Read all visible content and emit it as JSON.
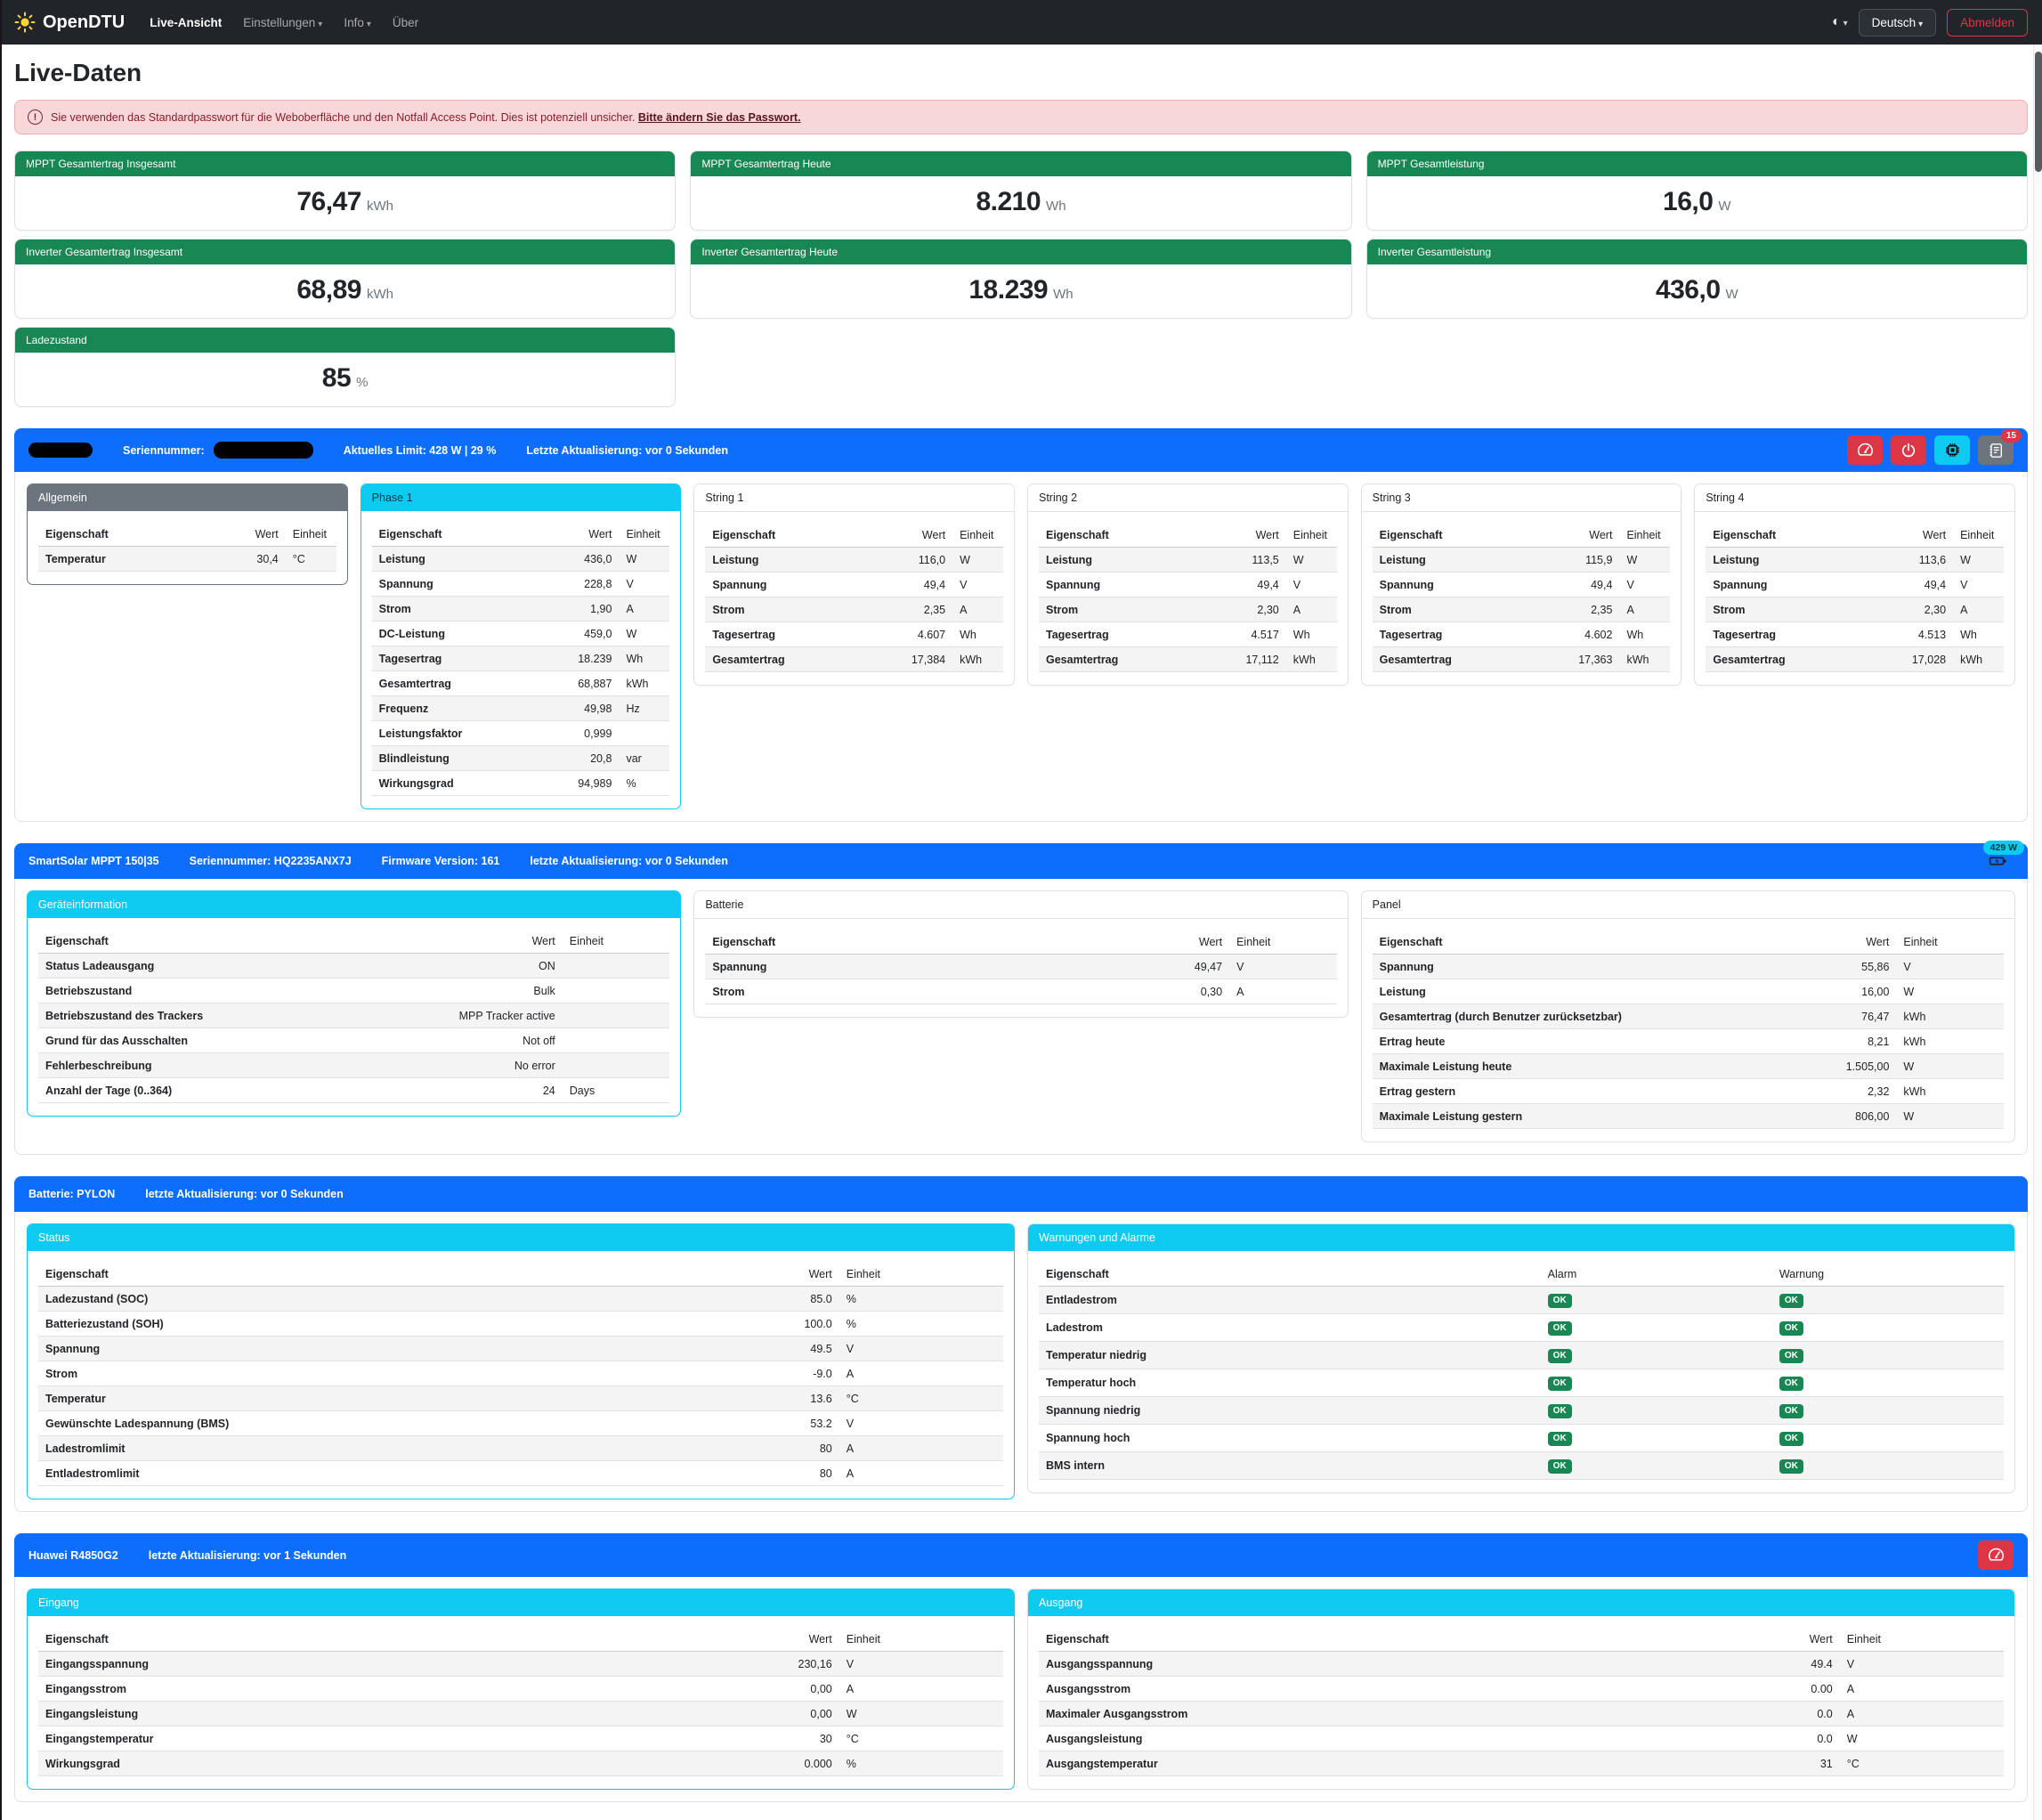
{
  "navbar": {
    "brand": "OpenDTU",
    "links": {
      "live": "Live-Ansicht",
      "settings": "Einstellungen",
      "info": "Info",
      "about": "Über"
    },
    "language": "Deutsch",
    "logout": "Abmelden"
  },
  "page_title": "Live-Daten",
  "alert": {
    "text": "Sie verwenden das Standardpasswort für die Weboberfläche und den Notfall Access Point. Dies ist potenziell unsicher.",
    "link": "Bitte ändern Sie das Passwort."
  },
  "summary": {
    "col1": [
      {
        "title": "MPPT Gesamtertrag Insgesamt",
        "value": "76,47",
        "unit": "kWh"
      },
      {
        "title": "Inverter Gesamtertrag Insgesamt",
        "value": "68,89",
        "unit": "kWh"
      },
      {
        "title": "Ladezustand",
        "value": "85",
        "unit": "%"
      }
    ],
    "col2": [
      {
        "title": "MPPT Gesamtertrag Heute",
        "value": "8.210",
        "unit": "Wh"
      },
      {
        "title": "Inverter Gesamtertrag Heute",
        "value": "18.239",
        "unit": "Wh"
      }
    ],
    "col3": [
      {
        "title": "MPPT Gesamtleistung",
        "value": "16,0",
        "unit": "W"
      },
      {
        "title": "Inverter Gesamtleistung",
        "value": "436,0",
        "unit": "W"
      }
    ]
  },
  "inverter": {
    "header": {
      "serial_label": "Seriennummer:",
      "limit": "Aktuelles Limit: 428 W | 29 %",
      "updated": "Letzte Aktualisierung: vor 0 Sekunden",
      "log_count": "15"
    },
    "tables": [
      {
        "title": "Allgemein",
        "style": "secondary",
        "columns": [
          "Eigenschaft",
          "Wert",
          "Einheit"
        ],
        "rows": [
          [
            "Temperatur",
            "30,4",
            "°C"
          ]
        ]
      },
      {
        "title": "Phase 1",
        "style": "info-dark",
        "columns": [
          "Eigenschaft",
          "Wert",
          "Einheit"
        ],
        "rows": [
          [
            "Leistung",
            "436,0",
            "W"
          ],
          [
            "Spannung",
            "228,8",
            "V"
          ],
          [
            "Strom",
            "1,90",
            "A"
          ],
          [
            "DC-Leistung",
            "459,0",
            "W"
          ],
          [
            "Tagesertrag",
            "18.239",
            "Wh"
          ],
          [
            "Gesamtertrag",
            "68,887",
            "kWh"
          ],
          [
            "Frequenz",
            "49,98",
            "Hz"
          ],
          [
            "Leistungsfaktor",
            "0,999",
            ""
          ],
          [
            "Blindleistung",
            "20,8",
            "var"
          ],
          [
            "Wirkungsgrad",
            "94,989",
            "%"
          ]
        ]
      },
      {
        "title": "String 1",
        "style": "plain",
        "columns": [
          "Eigenschaft",
          "Wert",
          "Einheit"
        ],
        "rows": [
          [
            "Leistung",
            "116,0",
            "W"
          ],
          [
            "Spannung",
            "49,4",
            "V"
          ],
          [
            "Strom",
            "2,35",
            "A"
          ],
          [
            "Tagesertrag",
            "4.607",
            "Wh"
          ],
          [
            "Gesamtertrag",
            "17,384",
            "kWh"
          ]
        ]
      },
      {
        "title": "String 2",
        "style": "plain",
        "columns": [
          "Eigenschaft",
          "Wert",
          "Einheit"
        ],
        "rows": [
          [
            "Leistung",
            "113,5",
            "W"
          ],
          [
            "Spannung",
            "49,4",
            "V"
          ],
          [
            "Strom",
            "2,30",
            "A"
          ],
          [
            "Tagesertrag",
            "4.517",
            "Wh"
          ],
          [
            "Gesamtertrag",
            "17,112",
            "kWh"
          ]
        ]
      },
      {
        "title": "String 3",
        "style": "plain",
        "columns": [
          "Eigenschaft",
          "Wert",
          "Einheit"
        ],
        "rows": [
          [
            "Leistung",
            "115,9",
            "W"
          ],
          [
            "Spannung",
            "49,4",
            "V"
          ],
          [
            "Strom",
            "2,35",
            "A"
          ],
          [
            "Tagesertrag",
            "4.602",
            "Wh"
          ],
          [
            "Gesamtertrag",
            "17,363",
            "kWh"
          ]
        ]
      },
      {
        "title": "String 4",
        "style": "plain",
        "columns": [
          "Eigenschaft",
          "Wert",
          "Einheit"
        ],
        "rows": [
          [
            "Leistung",
            "113,6",
            "W"
          ],
          [
            "Spannung",
            "49,4",
            "V"
          ],
          [
            "Strom",
            "2,30",
            "A"
          ],
          [
            "Tagesertrag",
            "4.513",
            "Wh"
          ],
          [
            "Gesamtertrag",
            "17,028",
            "kWh"
          ]
        ]
      }
    ]
  },
  "victron": {
    "header": {
      "model": "SmartSolar MPPT 150|35",
      "serial": "Seriennummer: HQ2235ANX7J",
      "firmware": "Firmware Version: 161",
      "updated": "letzte Aktualisierung: vor 0 Sekunden",
      "power_badge": "429 W"
    },
    "tables": [
      {
        "title": "Geräteinformation",
        "style": "info-white",
        "columns": [
          "Eigenschaft",
          "Wert",
          "Einheit"
        ],
        "rows": [
          [
            "Status Ladeausgang",
            "ON",
            ""
          ],
          [
            "Betriebszustand",
            "Bulk",
            ""
          ],
          [
            "Betriebszustand des Trackers",
            "MPP Tracker active",
            ""
          ],
          [
            "Grund für das Ausschalten",
            "Not off",
            ""
          ],
          [
            "Fehlerbeschreibung",
            "No error",
            ""
          ],
          [
            "Anzahl der Tage (0..364)",
            "24",
            "Days"
          ]
        ]
      },
      {
        "title": "Batterie",
        "style": "plain",
        "columns": [
          "Eigenschaft",
          "Wert",
          "Einheit"
        ],
        "rows": [
          [
            "Spannung",
            "49,47",
            "V"
          ],
          [
            "Strom",
            "0,30",
            "A"
          ]
        ]
      },
      {
        "title": "Panel",
        "style": "plain",
        "columns": [
          "Eigenschaft",
          "Wert",
          "Einheit"
        ],
        "rows": [
          [
            "Spannung",
            "55,86",
            "V"
          ],
          [
            "Leistung",
            "16,00",
            "W"
          ],
          [
            "Gesamtertrag (durch Benutzer zurücksetzbar)",
            "76,47",
            "kWh"
          ],
          [
            "Ertrag heute",
            "8,21",
            "kWh"
          ],
          [
            "Maximale Leistung heute",
            "1.505,00",
            "W"
          ],
          [
            "Ertrag gestern",
            "2,32",
            "kWh"
          ],
          [
            "Maximale Leistung gestern",
            "806,00",
            "W"
          ]
        ]
      }
    ]
  },
  "pylon": {
    "header": {
      "name": "Batterie: PYLON",
      "updated": "letzte Aktualisierung: vor 0 Sekunden"
    },
    "tables": [
      {
        "title": "Status",
        "style": "info-white",
        "columns": [
          "Eigenschaft",
          "Wert",
          "Einheit"
        ],
        "rows": [
          [
            "Ladezustand (SOC)",
            "85.0",
            "%"
          ],
          [
            "Batteriezustand (SOH)",
            "100.0",
            "%"
          ],
          [
            "Spannung",
            "49.5",
            "V"
          ],
          [
            "Strom",
            "-9.0",
            "A"
          ],
          [
            "Temperatur",
            "13.6",
            "°C"
          ],
          [
            "Gewünschte Ladespannung (BMS)",
            "53.2",
            "V"
          ],
          [
            "Ladestromlimit",
            "80",
            "A"
          ],
          [
            "Entladestromlimit",
            "80",
            "A"
          ]
        ]
      },
      {
        "title": "Warnungen und Alarme",
        "style": "info-plain",
        "badges": true,
        "columns": [
          "Eigenschaft",
          "Alarm",
          "Warnung"
        ],
        "rows": [
          [
            "Entladestrom",
            "OK",
            "OK"
          ],
          [
            "Ladestrom",
            "OK",
            "OK"
          ],
          [
            "Temperatur niedrig",
            "OK",
            "OK"
          ],
          [
            "Temperatur hoch",
            "OK",
            "OK"
          ],
          [
            "Spannung niedrig",
            "OK",
            "OK"
          ],
          [
            "Spannung hoch",
            "OK",
            "OK"
          ],
          [
            "BMS intern",
            "OK",
            "OK"
          ]
        ]
      }
    ]
  },
  "huawei": {
    "header": {
      "name": "Huawei R4850G2",
      "updated": "letzte Aktualisierung: vor 1 Sekunden"
    },
    "tables": [
      {
        "title": "Eingang",
        "style": "info-white",
        "columns": [
          "Eigenschaft",
          "Wert",
          "Einheit"
        ],
        "rows": [
          [
            "Eingangsspannung",
            "230,16",
            "V"
          ],
          [
            "Eingangsstrom",
            "0,00",
            "A"
          ],
          [
            "Eingangsleistung",
            "0,00",
            "W"
          ],
          [
            "Eingangstemperatur",
            "30",
            "°C"
          ],
          [
            "Wirkungsgrad",
            "0.000",
            "%"
          ]
        ]
      },
      {
        "title": "Ausgang",
        "style": "info-plain",
        "columns": [
          "Eigenschaft",
          "Wert",
          "Einheit"
        ],
        "rows": [
          [
            "Ausgangsspannung",
            "49.4",
            "V"
          ],
          [
            "Ausgangsstrom",
            "0.00",
            "A"
          ],
          [
            "Maximaler Ausgangsstrom",
            "0.0",
            "A"
          ],
          [
            "Ausgangsleistung",
            "0.0",
            "W"
          ],
          [
            "Ausgangstemperatur",
            "31",
            "°C"
          ]
        ]
      }
    ]
  }
}
